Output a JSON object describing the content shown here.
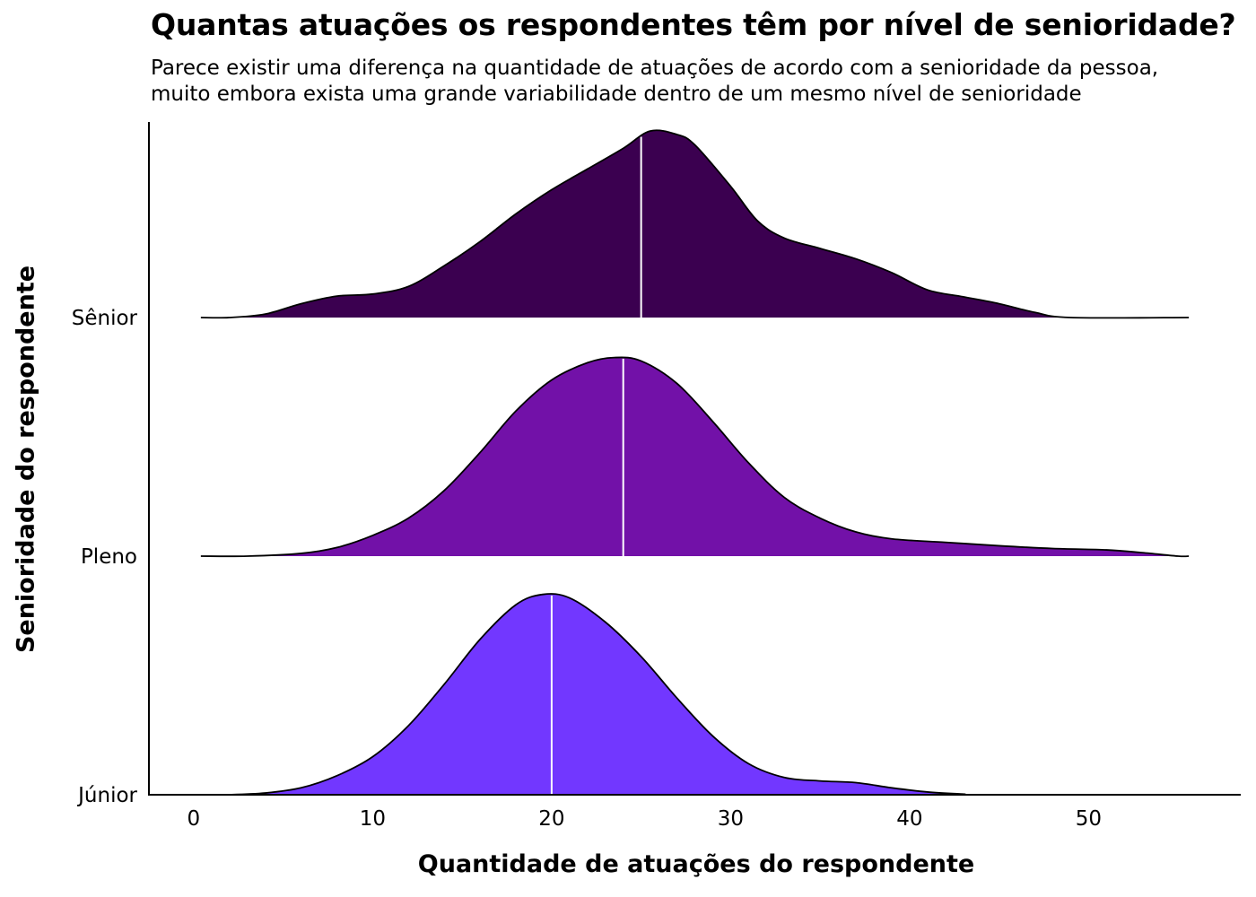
{
  "chart_data": {
    "type": "ridgeline",
    "title": "Quantas atuações os respondentes têm por nível de senioridade?",
    "subtitle_lines": [
      "Parece existir uma diferença na quantidade de atuações de acordo com a senioridade da pessoa,",
      "muito embora exista uma grande variabilidade dentro de um mesmo nível de senioridade"
    ],
    "xlabel": "Quantidade de atuações do respondente",
    "ylabel": "Senioridade do respondente",
    "xlim": [
      -2.5,
      58.5
    ],
    "x_ticks": [
      0,
      10,
      20,
      30,
      40,
      50
    ],
    "x_tick_labels": [
      "0",
      "10",
      "20",
      "30",
      "40",
      "50"
    ],
    "categories": [
      "Júnior",
      "Pleno",
      "Sênior"
    ],
    "series": [
      {
        "name": "Júnior",
        "color": "#7237ff",
        "median": 20,
        "density": [
          [
            2,
            0.0
          ],
          [
            4,
            0.005
          ],
          [
            6,
            0.02
          ],
          [
            8,
            0.055
          ],
          [
            10,
            0.11
          ],
          [
            12,
            0.2
          ],
          [
            14,
            0.32
          ],
          [
            16,
            0.45
          ],
          [
            18,
            0.55
          ],
          [
            19.5,
            0.58
          ],
          [
            21,
            0.57
          ],
          [
            23,
            0.5
          ],
          [
            25,
            0.4
          ],
          [
            27,
            0.28
          ],
          [
            29,
            0.17
          ],
          [
            31,
            0.09
          ],
          [
            33,
            0.05
          ],
          [
            35,
            0.04
          ],
          [
            37,
            0.035
          ],
          [
            39,
            0.02
          ],
          [
            41,
            0.008
          ],
          [
            43,
            0.002
          ],
          [
            44,
            0.0
          ]
        ]
      },
      {
        "name": "Pleno",
        "color": "#7211a8",
        "median": 24,
        "density": [
          [
            3,
            0.0
          ],
          [
            6,
            0.008
          ],
          [
            8,
            0.025
          ],
          [
            10,
            0.06
          ],
          [
            12,
            0.11
          ],
          [
            14,
            0.19
          ],
          [
            16,
            0.3
          ],
          [
            18,
            0.42
          ],
          [
            20,
            0.51
          ],
          [
            22,
            0.56
          ],
          [
            23.5,
            0.575
          ],
          [
            25,
            0.565
          ],
          [
            27,
            0.5
          ],
          [
            29,
            0.39
          ],
          [
            31,
            0.27
          ],
          [
            33,
            0.17
          ],
          [
            35,
            0.11
          ],
          [
            37,
            0.07
          ],
          [
            39,
            0.05
          ],
          [
            42,
            0.04
          ],
          [
            45,
            0.03
          ],
          [
            48,
            0.022
          ],
          [
            51,
            0.018
          ],
          [
            53,
            0.01
          ],
          [
            55,
            0.0
          ]
        ]
      },
      {
        "name": "Sênior",
        "color": "#3b0050",
        "median": 25,
        "density": [
          [
            2,
            0.0
          ],
          [
            4,
            0.01
          ],
          [
            6,
            0.04
          ],
          [
            8,
            0.062
          ],
          [
            10,
            0.068
          ],
          [
            12,
            0.09
          ],
          [
            14,
            0.15
          ],
          [
            16,
            0.22
          ],
          [
            18,
            0.3
          ],
          [
            20,
            0.37
          ],
          [
            22,
            0.43
          ],
          [
            24,
            0.49
          ],
          [
            25.5,
            0.54
          ],
          [
            27,
            0.53
          ],
          [
            28,
            0.5
          ],
          [
            30,
            0.38
          ],
          [
            31.5,
            0.28
          ],
          [
            33,
            0.23
          ],
          [
            35,
            0.2
          ],
          [
            37,
            0.17
          ],
          [
            39,
            0.13
          ],
          [
            41,
            0.08
          ],
          [
            43,
            0.06
          ],
          [
            45,
            0.04
          ],
          [
            47,
            0.015
          ],
          [
            49,
            0.0
          ]
        ]
      }
    ]
  }
}
